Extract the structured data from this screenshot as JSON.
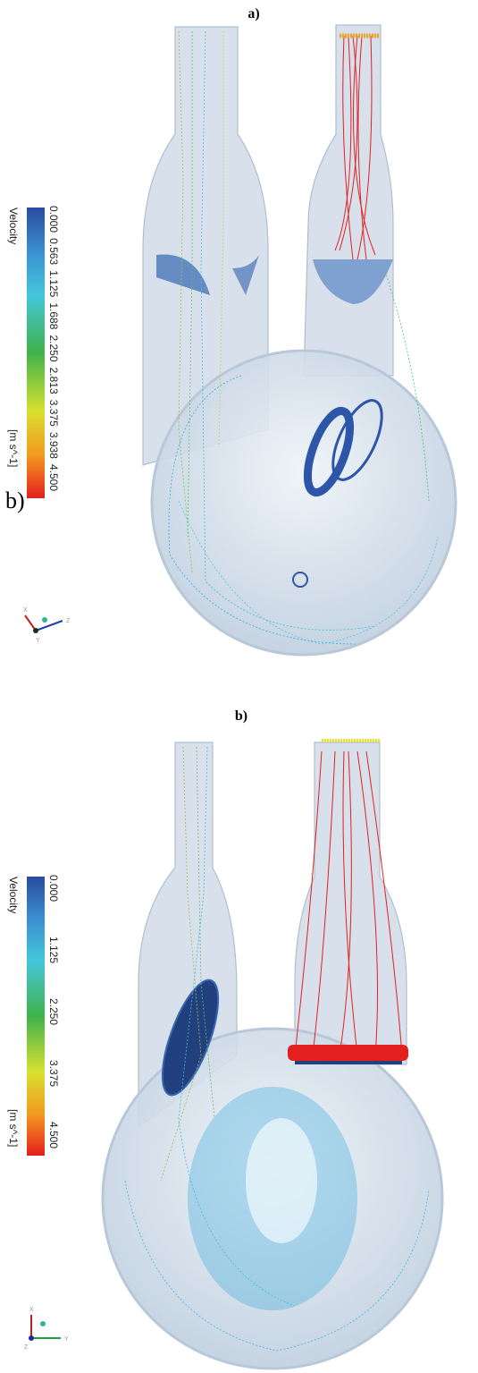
{
  "panels": [
    {
      "label": "a)",
      "colorbar": {
        "title": "Velocity",
        "unit": "[m s^-1]",
        "ticks": [
          "0.000",
          "0.563",
          "1.125",
          "1.688",
          "2.250",
          "2.813",
          "3.375",
          "3.938",
          "4.500"
        ]
      },
      "inset_label": "b)",
      "axes": [
        "X",
        "Y",
        "Z"
      ]
    },
    {
      "label": "b)",
      "colorbar": {
        "title": "Velocity",
        "unit": "[m s^-1]",
        "ticks": [
          "0.000",
          "1.125",
          "2.250",
          "3.375",
          "4.500"
        ]
      },
      "axes": [
        "X",
        "Y",
        "Z"
      ]
    }
  ]
}
